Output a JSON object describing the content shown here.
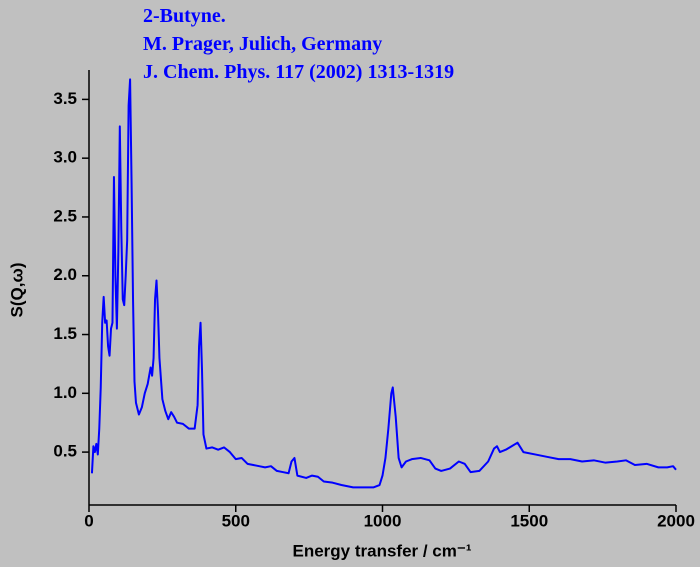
{
  "chart_data": {
    "type": "line",
    "title_lines": [
      "2-Butyne.",
      "M. Prager, Julich, Germany",
      "J. Chem. Phys. 117 (2002) 1313-1319"
    ],
    "x_label": "Energy transfer / cm⁻¹",
    "y_label": "S(Q,ω)",
    "xlim": [
      0,
      2000
    ],
    "xticks": [
      0,
      500,
      1000,
      1500,
      2000
    ],
    "ylim": [
      0.05,
      3.75
    ],
    "yticks": [
      0.5,
      {
        "value": 1,
        "label": "1.0"
      },
      1.5,
      {
        "value": 2,
        "label": "2.0"
      },
      2.5,
      {
        "value": 3,
        "label": "3.0"
      },
      3.5
    ],
    "series": [
      {
        "name": "2-Butyne",
        "color": "#0000ff",
        "x": [
          10,
          15,
          20,
          25,
          30,
          35,
          40,
          45,
          50,
          55,
          60,
          65,
          70,
          75,
          80,
          85,
          90,
          95,
          100,
          105,
          110,
          115,
          120,
          125,
          130,
          135,
          140,
          145,
          150,
          155,
          160,
          170,
          180,
          190,
          200,
          210,
          215,
          220,
          225,
          230,
          235,
          240,
          250,
          260,
          270,
          280,
          290,
          300,
          320,
          340,
          360,
          370,
          375,
          380,
          385,
          390,
          400,
          420,
          440,
          460,
          480,
          500,
          520,
          540,
          560,
          580,
          600,
          620,
          640,
          660,
          680,
          690,
          700,
          710,
          740,
          760,
          780,
          800,
          830,
          860,
          900,
          940,
          970,
          990,
          1000,
          1010,
          1020,
          1030,
          1035,
          1045,
          1055,
          1065,
          1080,
          1100,
          1130,
          1160,
          1180,
          1200,
          1230,
          1260,
          1280,
          1300,
          1330,
          1360,
          1380,
          1390,
          1400,
          1420,
          1440,
          1460,
          1480,
          1520,
          1560,
          1600,
          1640,
          1680,
          1720,
          1760,
          1800,
          1830,
          1860,
          1900,
          1940,
          1970,
          1990,
          2000
        ],
        "values": [
          0.32,
          0.55,
          0.5,
          0.57,
          0.48,
          0.7,
          1.05,
          1.6,
          1.82,
          1.6,
          1.62,
          1.4,
          1.32,
          1.55,
          1.6,
          2.84,
          2.0,
          1.55,
          2.2,
          3.27,
          2.4,
          1.8,
          1.75,
          2.0,
          2.3,
          3.45,
          3.67,
          2.8,
          1.8,
          1.1,
          0.92,
          0.82,
          0.88,
          1.0,
          1.08,
          1.22,
          1.15,
          1.3,
          1.8,
          1.96,
          1.7,
          1.3,
          0.95,
          0.85,
          0.78,
          0.84,
          0.8,
          0.75,
          0.74,
          0.7,
          0.7,
          0.9,
          1.4,
          1.6,
          1.2,
          0.65,
          0.53,
          0.54,
          0.52,
          0.54,
          0.5,
          0.44,
          0.45,
          0.4,
          0.39,
          0.38,
          0.37,
          0.38,
          0.34,
          0.33,
          0.32,
          0.42,
          0.45,
          0.3,
          0.28,
          0.3,
          0.29,
          0.25,
          0.24,
          0.22,
          0.2,
          0.2,
          0.2,
          0.22,
          0.3,
          0.45,
          0.7,
          1.0,
          1.05,
          0.8,
          0.45,
          0.37,
          0.42,
          0.44,
          0.45,
          0.43,
          0.36,
          0.34,
          0.36,
          0.42,
          0.4,
          0.33,
          0.34,
          0.42,
          0.53,
          0.55,
          0.5,
          0.52,
          0.55,
          0.58,
          0.5,
          0.48,
          0.46,
          0.44,
          0.44,
          0.42,
          0.43,
          0.41,
          0.42,
          0.43,
          0.39,
          0.4,
          0.37,
          0.37,
          0.38,
          0.35
        ]
      }
    ]
  }
}
